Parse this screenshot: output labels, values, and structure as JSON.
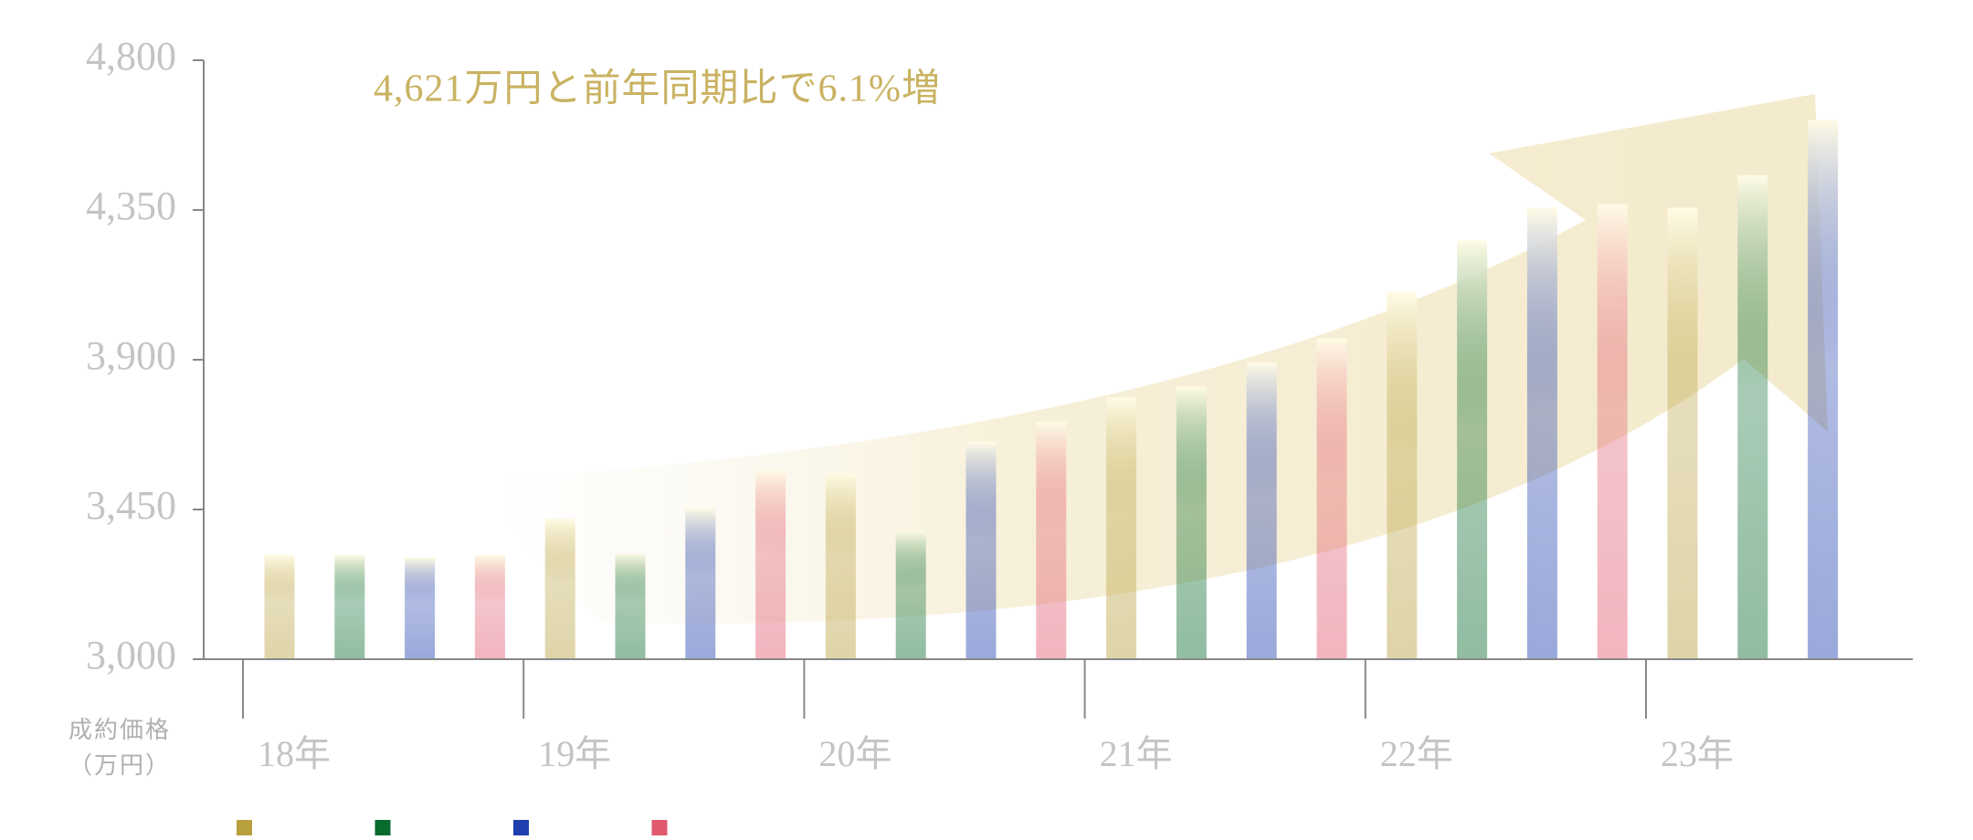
{
  "chart_data": {
    "type": "bar",
    "annotation": "4,621万円と前年同期比で6.1%増",
    "y_label": [
      "成約価格",
      "（万円）"
    ],
    "categories": [
      "18年",
      null,
      null,
      null,
      "19年",
      null,
      null,
      null,
      "20年",
      null,
      null,
      null,
      "21年",
      null,
      null,
      null,
      "22年",
      null,
      null,
      null,
      "23年",
      null,
      null
    ],
    "values": [
      3314,
      3314,
      3306,
      3314,
      3423,
      3318,
      3454,
      3567,
      3559,
      3386,
      3654,
      3714,
      3786,
      3820,
      3892,
      3964,
      4104,
      4259,
      4357,
      4368,
      4357,
      4455,
      4621
    ],
    "colors": [
      "#b8a03e",
      "#0a6b2e",
      "#1f3fae",
      "#e05a6e"
    ],
    "ylim": [
      3000,
      4800
    ],
    "yticks": [
      {
        "value": 3000,
        "label": "3,000"
      },
      {
        "value": 3450,
        "label": "3,450"
      },
      {
        "value": 3900,
        "label": "3,900"
      },
      {
        "value": 4350,
        "label": "4,350"
      },
      {
        "value": 4800,
        "label": "4,800"
      }
    ],
    "grid": false
  }
}
